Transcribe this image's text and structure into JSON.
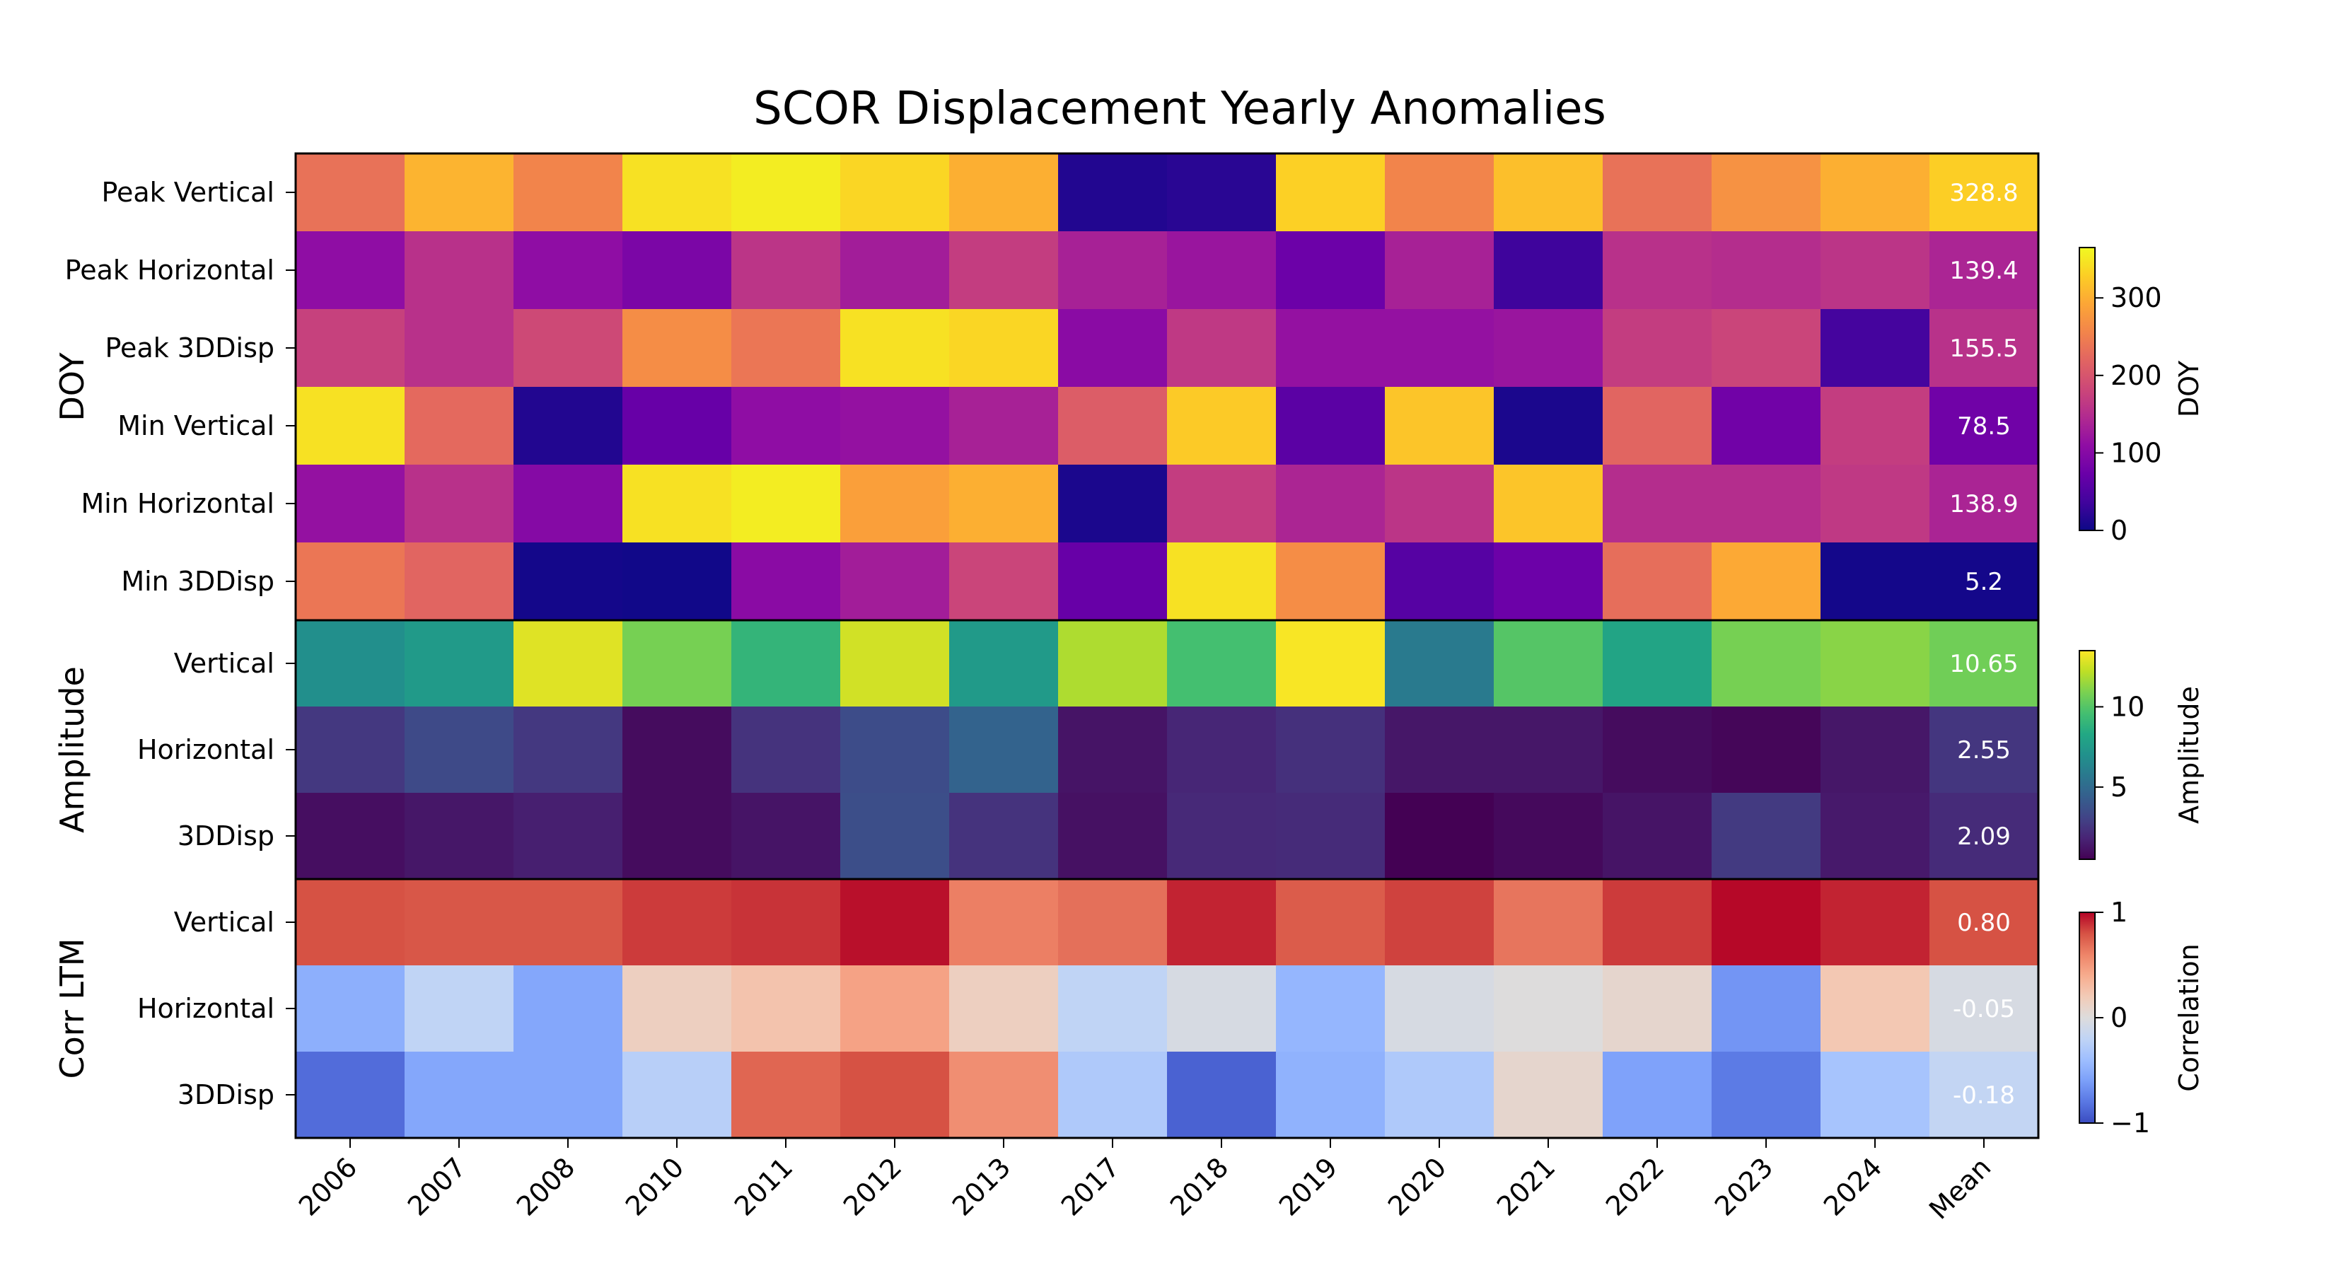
{
  "chart_data": {
    "type": "heatmap",
    "title": "SCOR Displacement Yearly Anomalies",
    "columns": [
      "2006",
      "2007",
      "2008",
      "2010",
      "2011",
      "2012",
      "2013",
      "2017",
      "2018",
      "2019",
      "2020",
      "2021",
      "2022",
      "2023",
      "2024",
      "Mean"
    ],
    "groups": [
      {
        "name": "DOY",
        "colormap": "plasma",
        "colorbar_label": "DOY",
        "range": [
          0,
          365
        ],
        "ticks": [
          "0",
          "100",
          "200",
          "300"
        ],
        "tick_values": [
          0,
          100,
          200,
          300
        ],
        "rows": [
          {
            "label": "Peak Vertical",
            "values": [
              235,
              305,
              255,
              345,
              355,
              335,
              300,
              15,
              20,
              330,
              255,
              315,
              235,
              270,
              300,
              328.8
            ],
            "mean_label": "328.8"
          },
          {
            "label": "Peak Horizontal",
            "values": [
              110,
              155,
              110,
              90,
              160,
              130,
              170,
              135,
              120,
              75,
              135,
              35,
              155,
              150,
              160,
              139.4
            ],
            "mean_label": "139.4"
          },
          {
            "label": "Peak 3DDisp",
            "values": [
              175,
              155,
              185,
              265,
              240,
              345,
              335,
              105,
              165,
              115,
              115,
              120,
              170,
              180,
              40,
              155.5
            ],
            "mean_label": "155.5"
          },
          {
            "label": "Min Vertical",
            "values": [
              345,
              225,
              15,
              70,
              110,
              115,
              135,
              210,
              325,
              60,
              320,
              10,
              220,
              80,
              170,
              78.5
            ],
            "mean_label": "78.5"
          },
          {
            "label": "Min Horizontal",
            "values": [
              115,
              155,
              100,
              345,
              355,
              285,
              300,
              10,
              170,
              140,
              160,
              320,
              150,
              150,
              165,
              138.9
            ],
            "mean_label": "138.9"
          },
          {
            "label": "Min 3DDisp",
            "values": [
              240,
              220,
              5,
              3,
              105,
              130,
              180,
              70,
              345,
              265,
              55,
              75,
              230,
              295,
              5,
              5.2
            ],
            "mean_label": "5.2"
          }
        ]
      },
      {
        "name": "Amplitude",
        "colormap": "viridis",
        "colorbar_label": "Amplitude",
        "range": [
          0.5,
          13.5
        ],
        "ticks": [
          "5",
          "10"
        ],
        "tick_values": [
          5,
          10
        ],
        "rows": [
          {
            "label": "Vertical",
            "values": [
              6.9,
              7.5,
              12.9,
              10.8,
              9.0,
              12.6,
              7.5,
              11.9,
              9.6,
              13.4,
              5.8,
              10.0,
              8.1,
              10.8,
              11.2,
              10.65
            ],
            "mean_label": "10.65"
          },
          {
            "label": "Horizontal",
            "values": [
              2.6,
              3.4,
              2.6,
              0.9,
              2.4,
              3.5,
              4.6,
              1.2,
              1.9,
              2.3,
              1.3,
              1.3,
              0.9,
              0.7,
              1.3,
              2.55
            ],
            "mean_label": "2.55"
          },
          {
            "label": "3DDisp",
            "values": [
              1.0,
              1.3,
              1.6,
              0.9,
              1.2,
              3.6,
              2.4,
              1.1,
              2.0,
              2.1,
              0.5,
              0.8,
              1.2,
              2.7,
              1.4,
              2.09
            ],
            "mean_label": "2.09"
          }
        ]
      },
      {
        "name": "Corr LTM",
        "colormap": "coolwarm",
        "colorbar_label": "Correlation",
        "range": [
          -1,
          1
        ],
        "ticks": [
          "−1",
          "0",
          "1"
        ],
        "tick_values": [
          -1,
          0,
          1
        ],
        "rows": [
          {
            "label": "Vertical",
            "values": [
              0.8,
              0.78,
              0.78,
              0.86,
              0.88,
              0.97,
              0.62,
              0.68,
              0.92,
              0.76,
              0.84,
              0.66,
              0.86,
              0.99,
              0.92,
              0.8
            ],
            "mean_label": "0.80"
          },
          {
            "label": "Horizontal",
            "values": [
              -0.5,
              -0.2,
              -0.55,
              0.15,
              0.25,
              0.45,
              0.15,
              -0.2,
              -0.05,
              -0.45,
              -0.05,
              0.0,
              0.08,
              -0.65,
              0.22,
              -0.05
            ],
            "mean_label": "-0.05"
          },
          {
            "label": "3DDisp",
            "values": [
              -0.85,
              -0.55,
              -0.55,
              -0.25,
              0.72,
              0.8,
              0.55,
              -0.3,
              -0.9,
              -0.48,
              -0.3,
              0.08,
              -0.58,
              -0.78,
              -0.35,
              -0.18
            ],
            "mean_label": "-0.18"
          }
        ]
      }
    ]
  }
}
